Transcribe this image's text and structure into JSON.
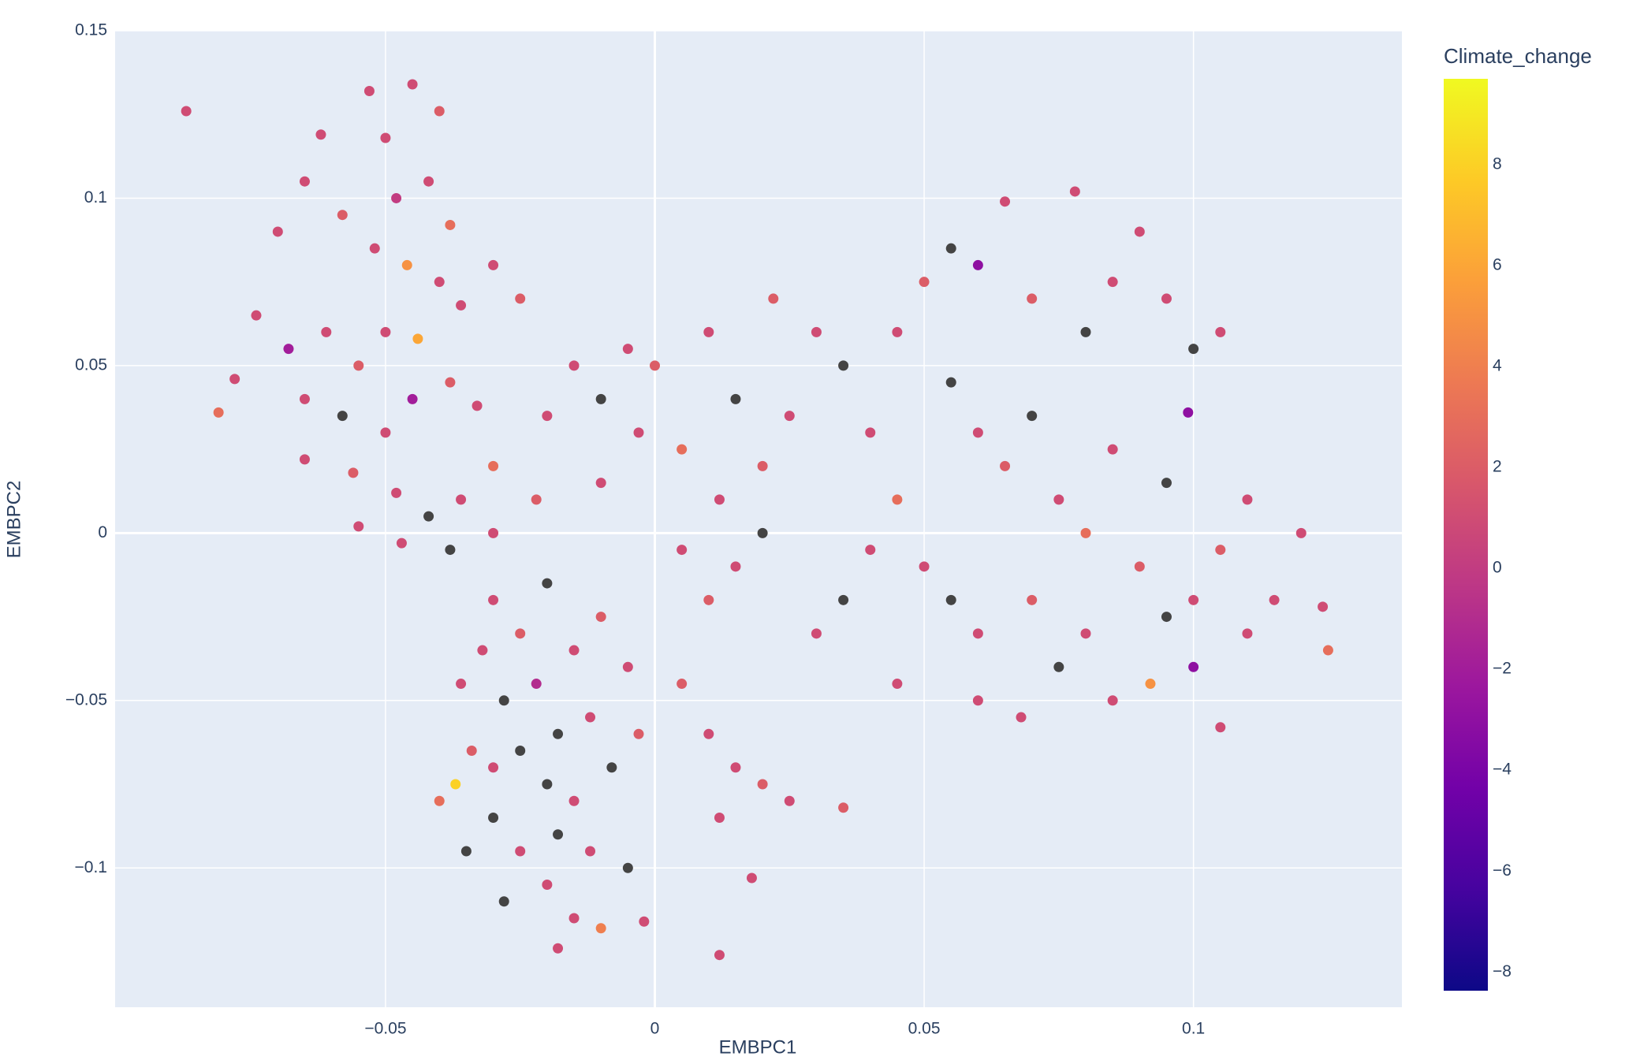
{
  "chart_data": {
    "type": "scatter",
    "x_label": "EMBPC1",
    "y_label": "EMBPC2",
    "colorbar_title": "Climate_change",
    "xlim": [
      -0.1002,
      0.1387
    ],
    "ylim": [
      -0.1416,
      0.15
    ],
    "xticks": [
      {
        "value": -0.05,
        "label": "−0.05"
      },
      0,
      0.05,
      0.1
    ],
    "yticks": [
      {
        "value": -0.1,
        "label": "−0.1"
      },
      {
        "value": -0.05,
        "label": "−0.05"
      },
      0,
      0.05,
      0.1,
      0.15
    ],
    "clim": [
      -8.37,
      9.7
    ],
    "cticks": [
      {
        "value": -8,
        "label": "−8"
      },
      {
        "value": -6,
        "label": "−6"
      },
      {
        "value": -4,
        "label": "−4"
      },
      {
        "value": -2,
        "label": "−2"
      },
      0,
      2,
      4,
      6,
      8
    ],
    "colorscale": [
      "#0d0887",
      "#46039f",
      "#7201a8",
      "#9c179e",
      "#bd3786",
      "#d8576b",
      "#ed7953",
      "#fb9f3a",
      "#fdca26",
      "#f0f921"
    ],
    "nan_color": "#444444",
    "grid": true,
    "x": [
      -0.087,
      -0.053,
      -0.05,
      -0.045,
      -0.04,
      -0.062,
      -0.065,
      -0.058,
      -0.048,
      -0.042,
      -0.038,
      -0.052,
      -0.046,
      -0.04,
      -0.07,
      -0.074,
      -0.068,
      -0.061,
      -0.055,
      -0.05,
      -0.044,
      -0.036,
      -0.03,
      -0.025,
      -0.078,
      -0.081,
      -0.065,
      -0.058,
      -0.05,
      -0.045,
      -0.038,
      -0.033,
      -0.065,
      -0.056,
      -0.048,
      -0.042,
      -0.036,
      -0.03,
      -0.055,
      -0.047,
      -0.038,
      -0.03,
      -0.022,
      -0.02,
      -0.015,
      -0.01,
      -0.005,
      0.0,
      -0.003,
      0.005,
      -0.01,
      -0.03,
      -0.025,
      -0.02,
      -0.032,
      -0.036,
      -0.028,
      -0.022,
      -0.015,
      -0.01,
      -0.005,
      -0.018,
      -0.012,
      -0.025,
      -0.03,
      -0.034,
      -0.02,
      -0.015,
      -0.008,
      -0.003,
      -0.03,
      -0.025,
      -0.018,
      -0.012,
      -0.005,
      -0.028,
      -0.02,
      -0.015,
      -0.018,
      -0.01,
      -0.002,
      -0.035,
      -0.04,
      -0.037,
      0.005,
      0.01,
      0.015,
      0.02,
      0.012,
      0.02,
      0.025,
      0.015,
      0.01,
      0.03,
      0.022,
      0.005,
      0.01,
      0.015,
      0.02,
      0.012,
      0.025,
      0.035,
      0.012,
      0.018,
      0.03,
      0.035,
      0.04,
      0.045,
      0.04,
      0.035,
      0.045,
      0.05,
      0.055,
      0.06,
      0.065,
      0.078,
      0.07,
      0.08,
      0.085,
      0.09,
      0.095,
      0.1,
      0.105,
      0.055,
      0.06,
      0.065,
      0.07,
      0.075,
      0.08,
      0.05,
      0.055,
      0.06,
      0.07,
      0.075,
      0.08,
      0.085,
      0.09,
      0.095,
      0.1,
      0.105,
      0.11,
      0.115,
      0.12,
      0.125,
      0.124,
      0.11,
      0.095,
      0.085,
      0.1,
      0.045,
      0.06,
      0.068,
      0.092,
      0.105,
      0.099
    ],
    "y": [
      0.126,
      0.132,
      0.118,
      0.134,
      0.126,
      0.119,
      0.105,
      0.095,
      0.1,
      0.105,
      0.092,
      0.085,
      0.08,
      0.075,
      0.09,
      0.065,
      0.055,
      0.06,
      0.05,
      0.06,
      0.058,
      0.068,
      0.08,
      0.07,
      0.046,
      0.036,
      0.04,
      0.035,
      0.03,
      0.04,
      0.045,
      0.038,
      0.022,
      0.018,
      0.012,
      0.005,
      0.01,
      0.02,
      0.002,
      -0.003,
      -0.005,
      0.0,
      0.01,
      0.035,
      0.05,
      0.04,
      0.055,
      0.05,
      0.03,
      0.025,
      0.015,
      -0.02,
      -0.03,
      -0.015,
      -0.035,
      -0.045,
      -0.05,
      -0.045,
      -0.035,
      -0.025,
      -0.04,
      -0.06,
      -0.055,
      -0.065,
      -0.07,
      -0.065,
      -0.075,
      -0.08,
      -0.07,
      -0.06,
      -0.085,
      -0.095,
      -0.09,
      -0.095,
      -0.1,
      -0.11,
      -0.105,
      -0.115,
      -0.124,
      -0.118,
      -0.116,
      -0.095,
      -0.08,
      -0.075,
      -0.005,
      -0.02,
      -0.01,
      0.0,
      0.01,
      0.02,
      0.035,
      0.04,
      0.06,
      0.06,
      0.07,
      -0.045,
      -0.06,
      -0.07,
      -0.075,
      -0.085,
      -0.08,
      -0.082,
      -0.126,
      -0.103,
      -0.03,
      -0.02,
      -0.005,
      0.01,
      0.03,
      0.05,
      0.06,
      0.075,
      0.085,
      0.08,
      0.099,
      0.102,
      0.07,
      0.06,
      0.075,
      0.09,
      0.07,
      0.055,
      0.06,
      0.045,
      0.03,
      0.02,
      0.035,
      0.01,
      0.0,
      -0.01,
      -0.02,
      -0.03,
      -0.02,
      -0.04,
      -0.03,
      -0.05,
      -0.01,
      -0.025,
      -0.02,
      -0.005,
      -0.03,
      -0.02,
      0.0,
      -0.035,
      -0.022,
      0.01,
      0.015,
      0.025,
      -0.04,
      -0.045,
      -0.05,
      -0.055,
      -0.045,
      -0.058,
      0.036
    ],
    "color": [
      1,
      1,
      1,
      1,
      2,
      1,
      1,
      2,
      0,
      1,
      3,
      1,
      5,
      1,
      1,
      1,
      -2,
      1,
      2,
      1,
      6,
      1,
      1,
      2,
      1,
      3,
      1,
      null,
      1,
      -2,
      2,
      1,
      1,
      2,
      1,
      null,
      1,
      3,
      1,
      1,
      null,
      1,
      2,
      1,
      1,
      null,
      1,
      2,
      1,
      3,
      1,
      1,
      2,
      null,
      1,
      1,
      null,
      -1,
      1,
      2,
      1,
      null,
      1,
      null,
      1,
      2,
      null,
      1,
      null,
      2,
      null,
      1,
      null,
      1,
      null,
      null,
      1,
      1,
      1,
      4,
      1,
      null,
      3,
      8,
      1,
      2,
      1,
      null,
      1,
      2,
      1,
      null,
      1,
      1,
      2,
      2,
      1,
      1,
      2,
      1,
      1,
      2,
      1,
      1,
      1,
      null,
      1,
      3,
      1,
      null,
      1,
      2,
      null,
      -3,
      1,
      1,
      2,
      null,
      1,
      1,
      1,
      null,
      1,
      null,
      1,
      2,
      null,
      1,
      3,
      1,
      null,
      1,
      2,
      null,
      1,
      1,
      2,
      null,
      1,
      2,
      1,
      1,
      1,
      3,
      1,
      1,
      null,
      1,
      -3,
      1,
      1,
      1,
      5,
      1,
      -3
    ]
  }
}
